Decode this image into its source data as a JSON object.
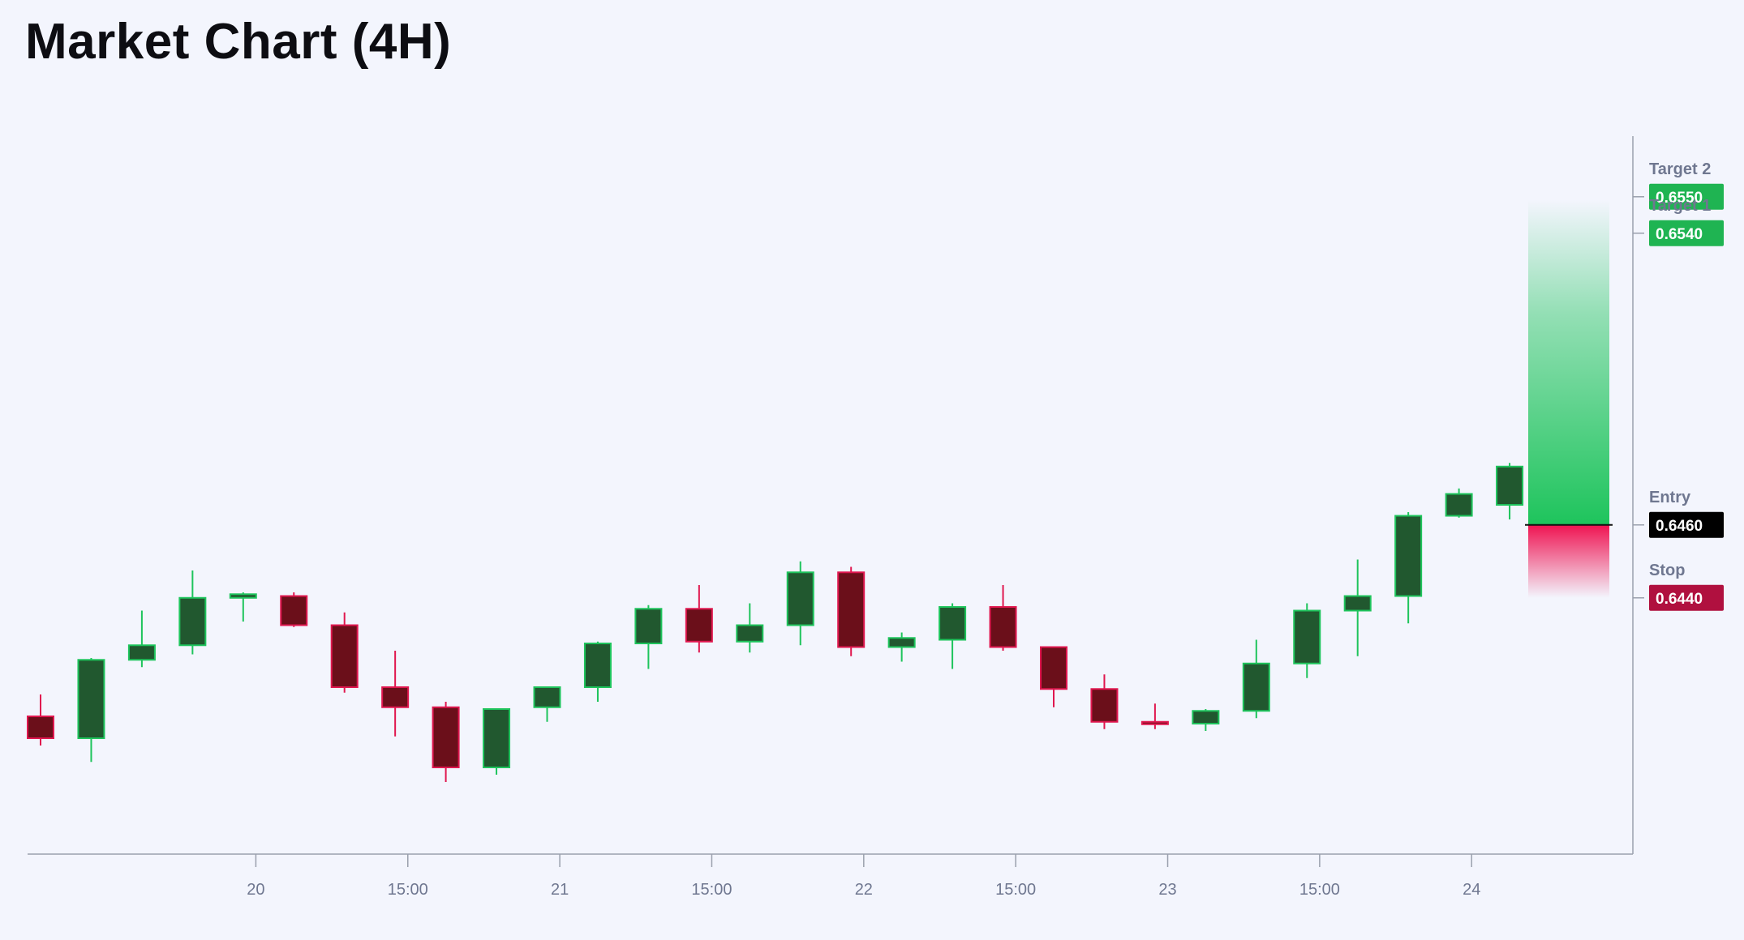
{
  "page_title": "Market Chart (4H)",
  "colors": {
    "background": "#f3f5fd",
    "bull_body": "#21582f",
    "bull_border": "#1ec45c",
    "bear_body": "#6b0f1a",
    "bear_border": "#e0174f",
    "target_badge": "#1fb452",
    "entry_badge": "#000000",
    "stop_badge": "#b0103f",
    "axis": "#9aa0ad"
  },
  "chart_data": {
    "type": "candlestick",
    "title": "Market Chart (4H)",
    "ylim": [
      0.63695,
      0.65684
    ],
    "x_ticks": [
      {
        "index": 4.25,
        "label": "20"
      },
      {
        "index": 7.25,
        "label": "15:00"
      },
      {
        "index": 10.25,
        "label": "21"
      },
      {
        "index": 13.25,
        "label": "15:00"
      },
      {
        "index": 16.25,
        "label": "22"
      },
      {
        "index": 19.25,
        "label": "15:00"
      },
      {
        "index": 22.25,
        "label": "23"
      },
      {
        "index": 25.25,
        "label": "15:00"
      },
      {
        "index": 28.25,
        "label": "24"
      }
    ],
    "candles": [
      {
        "o": 0.64075,
        "h": 0.64135,
        "l": 0.63995,
        "c": 0.64015
      },
      {
        "o": 0.64015,
        "h": 0.64235,
        "l": 0.6395,
        "c": 0.6423
      },
      {
        "o": 0.6423,
        "h": 0.64365,
        "l": 0.6421,
        "c": 0.6427
      },
      {
        "o": 0.6427,
        "h": 0.64475,
        "l": 0.64245,
        "c": 0.644
      },
      {
        "o": 0.644,
        "h": 0.64415,
        "l": 0.64335,
        "c": 0.6441
      },
      {
        "o": 0.64405,
        "h": 0.64415,
        "l": 0.6432,
        "c": 0.64325
      },
      {
        "o": 0.64325,
        "h": 0.6436,
        "l": 0.6414,
        "c": 0.64155
      },
      {
        "o": 0.64155,
        "h": 0.64255,
        "l": 0.6402,
        "c": 0.641
      },
      {
        "o": 0.641,
        "h": 0.64115,
        "l": 0.63895,
        "c": 0.63935
      },
      {
        "o": 0.63935,
        "h": 0.64095,
        "l": 0.63915,
        "c": 0.64095
      },
      {
        "o": 0.641,
        "h": 0.64155,
        "l": 0.6406,
        "c": 0.64155
      },
      {
        "o": 0.64155,
        "h": 0.6428,
        "l": 0.64115,
        "c": 0.64275
      },
      {
        "o": 0.64275,
        "h": 0.6438,
        "l": 0.64205,
        "c": 0.6437
      },
      {
        "o": 0.6437,
        "h": 0.64435,
        "l": 0.6425,
        "c": 0.6428
      },
      {
        "o": 0.6428,
        "h": 0.64385,
        "l": 0.6425,
        "c": 0.64325
      },
      {
        "o": 0.64325,
        "h": 0.645,
        "l": 0.6427,
        "c": 0.6447
      },
      {
        "o": 0.6447,
        "h": 0.64485,
        "l": 0.6424,
        "c": 0.64265
      },
      {
        "o": 0.64265,
        "h": 0.64305,
        "l": 0.64225,
        "c": 0.6429
      },
      {
        "o": 0.64285,
        "h": 0.64385,
        "l": 0.64205,
        "c": 0.64375
      },
      {
        "o": 0.64375,
        "h": 0.64435,
        "l": 0.64255,
        "c": 0.64265
      },
      {
        "o": 0.64265,
        "h": 0.64265,
        "l": 0.641,
        "c": 0.6415
      },
      {
        "o": 0.6415,
        "h": 0.6419,
        "l": 0.6404,
        "c": 0.6406
      },
      {
        "o": 0.6406,
        "h": 0.6411,
        "l": 0.6404,
        "c": 0.64055
      },
      {
        "o": 0.64055,
        "h": 0.64095,
        "l": 0.64035,
        "c": 0.6409
      },
      {
        "o": 0.6409,
        "h": 0.64285,
        "l": 0.6407,
        "c": 0.6422
      },
      {
        "o": 0.6422,
        "h": 0.64385,
        "l": 0.6418,
        "c": 0.64365
      },
      {
        "o": 0.64365,
        "h": 0.64505,
        "l": 0.6424,
        "c": 0.64405
      },
      {
        "o": 0.64405,
        "h": 0.64635,
        "l": 0.6433,
        "c": 0.64625
      },
      {
        "o": 0.64625,
        "h": 0.647,
        "l": 0.6462,
        "c": 0.64685
      },
      {
        "o": 0.64655,
        "h": 0.6477,
        "l": 0.64615,
        "c": 0.6476
      }
    ],
    "trade_levels": [
      {
        "name": "Target 2",
        "value": 0.655,
        "label": "0.6550",
        "kind": "target"
      },
      {
        "name": "Target 1",
        "value": 0.654,
        "label": "0.6540",
        "kind": "target"
      },
      {
        "name": "Entry",
        "value": 0.646,
        "label": "0.6460",
        "kind": "entry"
      },
      {
        "name": "Stop",
        "value": 0.644,
        "label": "0.6440",
        "kind": "stop"
      }
    ],
    "grid": false
  }
}
